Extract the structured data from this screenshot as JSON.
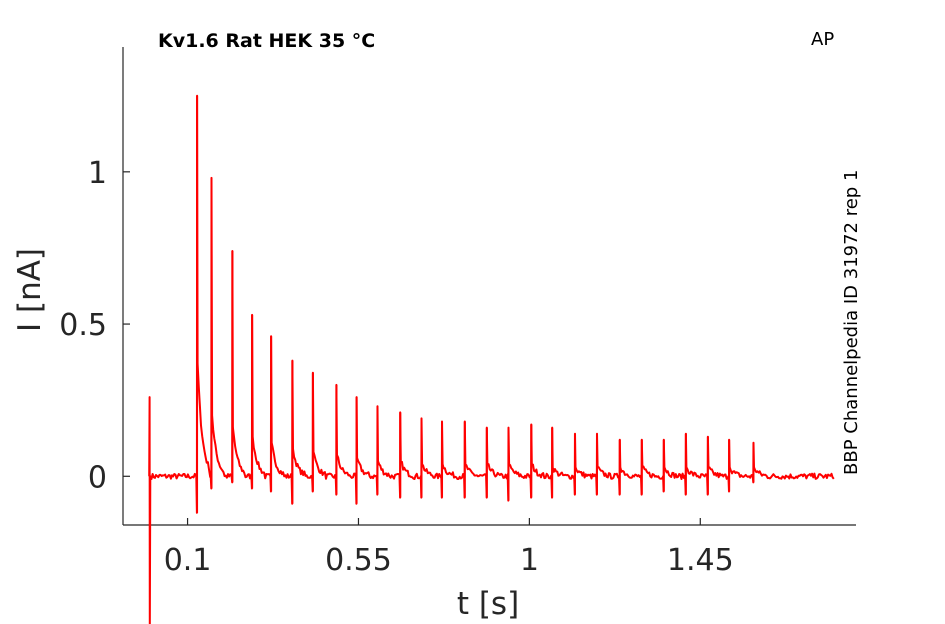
{
  "chart_data": {
    "type": "line",
    "title": "Kv1.6  Rat  HEK  35 °C",
    "tag": "AP",
    "side_label": "BBP Channelpedia ID 31972 rep 1",
    "xlabel": "t [s]",
    "ylabel": "I [nA]",
    "xlim": [
      -0.07,
      1.86
    ],
    "ylim": [
      -0.16,
      1.41
    ],
    "xticks": [
      0.1,
      0.55,
      1,
      1.45
    ],
    "xtick_labels": [
      "0.1",
      "0.55",
      "1",
      "1.45"
    ],
    "yticks": [
      0,
      0.5,
      1
    ],
    "ytick_labels": [
      "0",
      "0.5",
      "1"
    ],
    "grid": false,
    "series": [
      {
        "color": "#ff0000",
        "baseline": 0.0,
        "pre_pulse": {
          "t": 0.0,
          "peak": 0.26,
          "min": -0.5
        },
        "spikes": [
          {
            "t": 0.125,
            "peak": 1.25,
            "min": -0.12,
            "settle": 0.37
          },
          {
            "t": 0.163,
            "peak": 0.98,
            "min": -0.04,
            "settle": 0.2
          },
          {
            "t": 0.218,
            "peak": 0.74,
            "min": -0.02,
            "settle": 0.16
          },
          {
            "t": 0.27,
            "peak": 0.53,
            "min": -0.04,
            "settle": 0.13
          },
          {
            "t": 0.32,
            "peak": 0.46,
            "min": -0.05,
            "settle": 0.11
          },
          {
            "t": 0.376,
            "peak": 0.38,
            "min": -0.09,
            "settle": 0.09
          },
          {
            "t": 0.43,
            "peak": 0.34,
            "min": -0.05,
            "settle": 0.08
          },
          {
            "t": 0.492,
            "peak": 0.3,
            "min": -0.06,
            "settle": 0.07
          },
          {
            "t": 0.545,
            "peak": 0.26,
            "min": -0.09,
            "settle": 0.06
          },
          {
            "t": 0.6,
            "peak": 0.23,
            "min": -0.06,
            "settle": 0.05
          },
          {
            "t": 0.66,
            "peak": 0.21,
            "min": -0.07,
            "settle": 0.05
          },
          {
            "t": 0.716,
            "peak": 0.19,
            "min": -0.07,
            "settle": 0.04
          },
          {
            "t": 0.77,
            "peak": 0.18,
            "min": -0.07,
            "settle": 0.04
          },
          {
            "t": 0.83,
            "peak": 0.18,
            "min": -0.07,
            "settle": 0.04
          },
          {
            "t": 0.888,
            "peak": 0.16,
            "min": -0.07,
            "settle": 0.04
          },
          {
            "t": 0.945,
            "peak": 0.16,
            "min": -0.08,
            "settle": 0.04
          },
          {
            "t": 1.005,
            "peak": 0.17,
            "min": -0.07,
            "settle": 0.04
          },
          {
            "t": 1.06,
            "peak": 0.16,
            "min": -0.07,
            "settle": 0.03
          },
          {
            "t": 1.12,
            "peak": 0.14,
            "min": -0.06,
            "settle": 0.03
          },
          {
            "t": 1.178,
            "peak": 0.14,
            "min": -0.06,
            "settle": 0.03
          },
          {
            "t": 1.238,
            "peak": 0.12,
            "min": -0.06,
            "settle": 0.03
          },
          {
            "t": 1.296,
            "peak": 0.12,
            "min": -0.06,
            "settle": 0.03
          },
          {
            "t": 1.354,
            "peak": 0.12,
            "min": -0.05,
            "settle": 0.03
          },
          {
            "t": 1.412,
            "peak": 0.14,
            "min": -0.06,
            "settle": 0.03
          },
          {
            "t": 1.47,
            "peak": 0.13,
            "min": -0.06,
            "settle": 0.03
          },
          {
            "t": 1.526,
            "peak": 0.12,
            "min": -0.05,
            "settle": 0.03
          },
          {
            "t": 1.59,
            "peak": 0.11,
            "min": -0.02,
            "settle": 0.03
          }
        ],
        "t_end": 1.8
      }
    ]
  }
}
